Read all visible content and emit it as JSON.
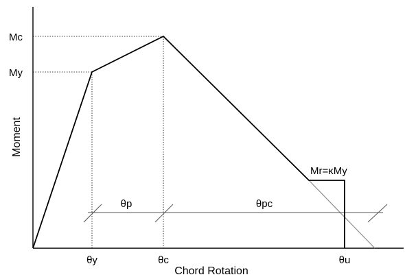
{
  "diagram": {
    "y_axis_label": "Moment",
    "x_axis_label": "Chord Rotation",
    "moment_labels": {
      "mc": "Mc",
      "my": "My"
    },
    "rotation_labels": {
      "theta_y": "θy",
      "theta_c": "θc",
      "theta_u": "θu"
    },
    "interval_labels": {
      "theta_p": "θp",
      "theta_pc": "θpc"
    },
    "residual_label": "Mr=κMy",
    "colors": {
      "line": "#000000",
      "dotted_guide": "#000000",
      "extension": "#8c8c8c",
      "dimension": "#555555"
    }
  }
}
